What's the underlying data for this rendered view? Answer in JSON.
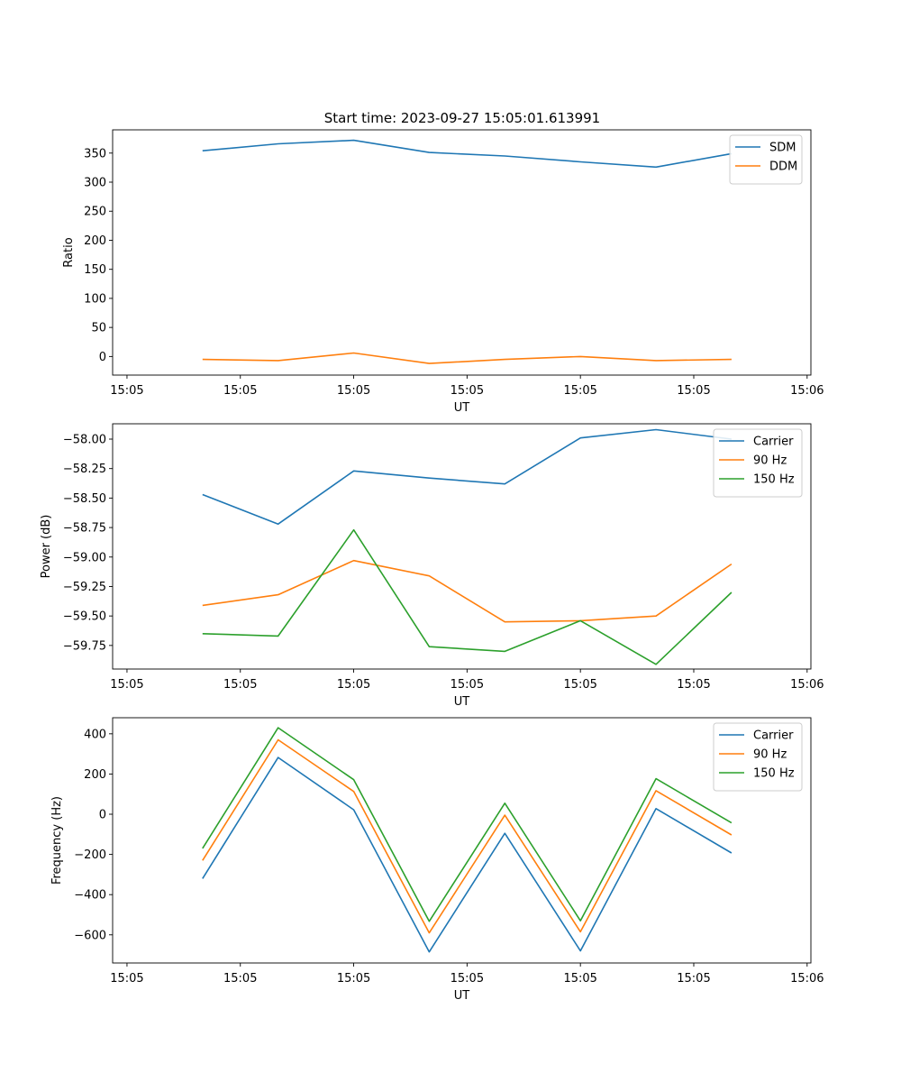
{
  "figure": {
    "title": "Start time: 2023-09-27 15:05:01.613991"
  },
  "chart_data": [
    {
      "type": "line",
      "xlabel": "UT",
      "ylabel": "Ratio",
      "x_tick_labels": [
        "15:05",
        "15:05",
        "15:05",
        "15:05",
        "15:05",
        "15:05",
        "15:06"
      ],
      "x": [
        1,
        2,
        3,
        4,
        5,
        6,
        7,
        8
      ],
      "xlim": [
        -0.19,
        9.05
      ],
      "ylim": [
        -32,
        390
      ],
      "yticks": [
        0,
        50,
        100,
        150,
        200,
        250,
        300,
        350
      ],
      "legend_position": "upper right",
      "series": [
        {
          "name": "SDM",
          "color": "#1f77b4",
          "values": [
            354,
            366,
            372,
            351,
            345,
            335,
            326,
            349
          ]
        },
        {
          "name": "DDM",
          "color": "#ff7f0e",
          "values": [
            -5,
            -7,
            6,
            -12,
            -5,
            0,
            -7,
            -5
          ]
        }
      ]
    },
    {
      "type": "line",
      "xlabel": "UT",
      "ylabel": "Power (dB)",
      "x_tick_labels": [
        "15:05",
        "15:05",
        "15:05",
        "15:05",
        "15:05",
        "15:05",
        "15:06"
      ],
      "x": [
        1,
        2,
        3,
        4,
        5,
        6,
        7,
        8
      ],
      "xlim": [
        -0.19,
        9.05
      ],
      "ylim": [
        -59.95,
        -57.87
      ],
      "yticks": [
        -59.75,
        -59.5,
        -59.25,
        -59.0,
        -58.75,
        -58.5,
        -58.25,
        -58.0
      ],
      "ytick_labels": [
        "−59.75",
        "−59.50",
        "−59.25",
        "−59.00",
        "−58.75",
        "−58.50",
        "−58.25",
        "−58.00"
      ],
      "legend_position": "upper right",
      "series": [
        {
          "name": "Carrier",
          "color": "#1f77b4",
          "values": [
            -58.47,
            -58.72,
            -58.27,
            -58.33,
            -58.38,
            -57.99,
            -57.92,
            -58.0
          ]
        },
        {
          "name": "90 Hz",
          "color": "#ff7f0e",
          "values": [
            -59.41,
            -59.32,
            -59.03,
            -59.16,
            -59.55,
            -59.54,
            -59.5,
            -59.06
          ]
        },
        {
          "name": "150 Hz",
          "color": "#2ca02c",
          "values": [
            -59.65,
            -59.67,
            -58.77,
            -59.76,
            -59.8,
            -59.54,
            -59.91,
            -59.3
          ]
        }
      ]
    },
    {
      "type": "line",
      "xlabel": "UT",
      "ylabel": "Frequency (Hz)",
      "x_tick_labels": [
        "15:05",
        "15:05",
        "15:05",
        "15:05",
        "15:05",
        "15:05",
        "15:06"
      ],
      "x": [
        1,
        2,
        3,
        4,
        5,
        6,
        7,
        8
      ],
      "xlim": [
        -0.19,
        9.05
      ],
      "ylim": [
        -740,
        480
      ],
      "yticks": [
        -600,
        -400,
        -200,
        0,
        200,
        400
      ],
      "ytick_labels": [
        "−600",
        "−400",
        "−200",
        "0",
        "200",
        "400"
      ],
      "legend_position": "upper right",
      "series": [
        {
          "name": "Carrier",
          "color": "#1f77b4",
          "values": [
            -320,
            282,
            22,
            -685,
            -95,
            -680,
            28,
            -193
          ]
        },
        {
          "name": "90 Hz",
          "color": "#ff7f0e",
          "values": [
            -230,
            370,
            113,
            -590,
            -5,
            -585,
            117,
            -103
          ]
        },
        {
          "name": "150 Hz",
          "color": "#2ca02c",
          "values": [
            -170,
            430,
            172,
            -533,
            55,
            -530,
            177,
            -43
          ]
        }
      ]
    }
  ]
}
